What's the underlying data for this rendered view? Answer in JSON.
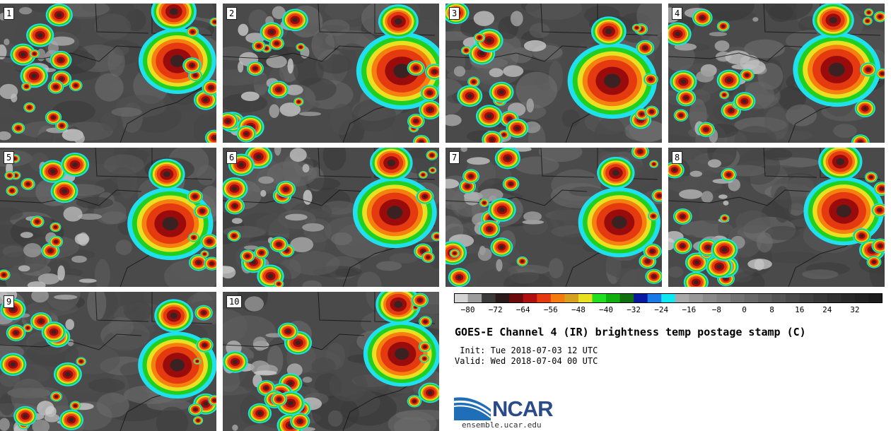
{
  "panels": [
    {
      "label": "1"
    },
    {
      "label": "2"
    },
    {
      "label": "3"
    },
    {
      "label": "4"
    },
    {
      "label": "5"
    },
    {
      "label": "6"
    },
    {
      "label": "7"
    },
    {
      "label": "8"
    },
    {
      "label": "9"
    },
    {
      "label": "10"
    }
  ],
  "colorbar": {
    "colors": [
      "#d4d4d4",
      "#9c9c9c",
      "#3a3a3a",
      "#2a1a1a",
      "#6b0b0b",
      "#b01010",
      "#e53a10",
      "#f57a10",
      "#d8a020",
      "#e8e020",
      "#20e020",
      "#10b010",
      "#107010",
      "#0a1aa0",
      "#1a78e8",
      "#10e8f0",
      "#a8a8a8",
      "#989898",
      "#8a8a8a",
      "#7e7e7e",
      "#727272",
      "#686868",
      "#5e5e5e",
      "#545454",
      "#4a4a4a",
      "#404040",
      "#383838",
      "#303030",
      "#282828",
      "#222222",
      "#1c1c1c"
    ],
    "tick_labels": [
      "−80",
      "−72",
      "−64",
      "−56",
      "−48",
      "−40",
      "−32",
      "−24",
      "−16",
      "−8",
      "0",
      "8",
      "16",
      "24",
      "32"
    ]
  },
  "title": "GOES-E Channel 4 (IR) brightness temp postage stamp (C)",
  "init_text": " Init: Tue 2018-07-03 12 UTC",
  "valid_text": "Valid: Wed 2018-07-04 00 UTC",
  "logo": {
    "text": "NCAR",
    "website": "ensemble.ucar.edu"
  }
}
